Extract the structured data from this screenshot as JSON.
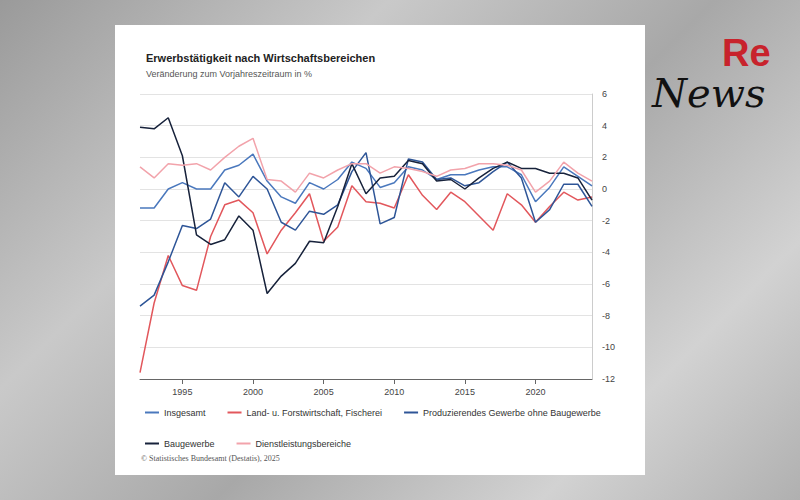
{
  "chart_data": {
    "type": "line",
    "title": "Erwerbstätigkeit nach Wirtschaftsbereichen",
    "subtitle": "Veränderung zum Vorjahreszeitraum in %",
    "source": "© Statistisches Bundesamt (Destatis), 2025",
    "x": [
      1992,
      1993,
      1994,
      1995,
      1996,
      1997,
      1998,
      1999,
      2000,
      2001,
      2002,
      2003,
      2004,
      2005,
      2006,
      2007,
      2008,
      2009,
      2010,
      2011,
      2012,
      2013,
      2014,
      2015,
      2016,
      2017,
      2018,
      2019,
      2020,
      2021,
      2022,
      2023,
      2024
    ],
    "xlim": [
      1992,
      2024
    ],
    "xticks": [
      1995,
      2000,
      2005,
      2010,
      2015,
      2020
    ],
    "ylim": [
      -12,
      6
    ],
    "yticks": [
      -12,
      -10,
      -8,
      -6,
      -4,
      -2,
      0,
      2,
      4,
      6
    ],
    "grid": true,
    "legend": "bottom",
    "series": [
      {
        "name": "Insgesamt",
        "color": "#4a78bd",
        "values": [
          -1.2,
          -1.2,
          0.0,
          0.4,
          0.0,
          0.0,
          1.2,
          1.5,
          2.2,
          0.5,
          -0.5,
          -0.9,
          0.4,
          0.0,
          0.6,
          1.7,
          1.3,
          0.1,
          0.4,
          1.4,
          1.2,
          0.6,
          0.9,
          0.9,
          1.2,
          1.4,
          1.4,
          0.9,
          -0.8,
          0.1,
          1.4,
          0.8,
          0.2
        ]
      },
      {
        "name": "Land- u. Forstwirtschaft, Fischerei",
        "color": "#e2575c",
        "values": [
          -11.6,
          -7.2,
          -4.2,
          -6.1,
          -6.4,
          -3.0,
          -1.0,
          -0.7,
          -1.5,
          -4.1,
          -2.6,
          -1.5,
          -0.3,
          -3.3,
          -2.4,
          0.2,
          -0.8,
          -0.9,
          -1.2,
          0.9,
          -0.4,
          -1.3,
          -0.2,
          -0.8,
          -1.7,
          -2.6,
          -0.3,
          -1.0,
          -2.1,
          -1.1,
          -0.2,
          -0.7,
          -0.5
        ]
      },
      {
        "name": "Produzierendes Gewerbe ohne Baugewerbe",
        "color": "#2e5597",
        "values": [
          -7.4,
          -6.7,
          -4.6,
          -2.3,
          -2.5,
          -1.9,
          0.4,
          -0.5,
          0.8,
          0.0,
          -2.1,
          -2.6,
          -1.4,
          -1.6,
          -1.0,
          1.1,
          2.3,
          -2.2,
          -1.8,
          1.9,
          1.7,
          0.6,
          0.7,
          0.2,
          0.4,
          1.1,
          1.7,
          0.7,
          -2.1,
          -1.3,
          0.3,
          0.3,
          -1.1
        ]
      },
      {
        "name": "Baugewerbe",
        "color": "#17223b",
        "values": [
          3.9,
          3.8,
          4.5,
          2.1,
          -2.9,
          -3.5,
          -3.2,
          -1.7,
          -2.6,
          -6.6,
          -5.5,
          -4.7,
          -3.3,
          -3.4,
          -1.1,
          1.6,
          -0.3,
          0.7,
          0.8,
          1.8,
          1.6,
          0.5,
          0.6,
          0.0,
          0.7,
          1.3,
          1.7,
          1.3,
          1.3,
          1.0,
          1.0,
          0.7,
          -0.7
        ]
      },
      {
        "name": "Dienstleistungsbereiche",
        "color": "#f2a3ab",
        "values": [
          1.4,
          0.7,
          1.6,
          1.5,
          1.6,
          1.2,
          2.0,
          2.7,
          3.2,
          0.6,
          0.5,
          -0.2,
          1.0,
          0.7,
          1.2,
          1.6,
          1.6,
          1.0,
          1.4,
          1.3,
          1.1,
          0.8,
          1.2,
          1.3,
          1.6,
          1.6,
          1.5,
          1.2,
          -0.2,
          0.5,
          1.7,
          1.0,
          0.5
        ]
      }
    ]
  },
  "logo": [
    "Re",
    "News"
  ]
}
